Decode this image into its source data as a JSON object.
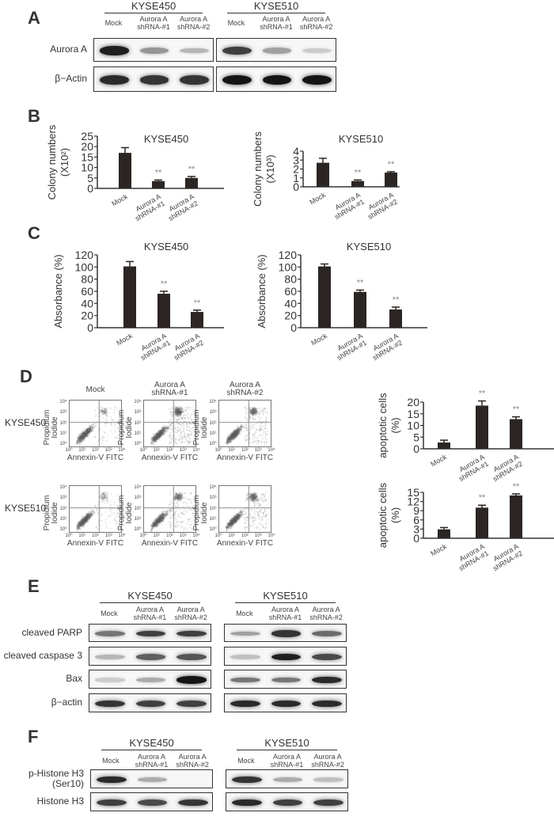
{
  "panels": {
    "A": "A",
    "B": "B",
    "C": "C",
    "D": "D",
    "E": "E",
    "F": "F"
  },
  "cell_lines": [
    "KYSE450",
    "KYSE510"
  ],
  "lanes": [
    {
      "line1": "Mock",
      "line2": ""
    },
    {
      "line1": "Aurora A",
      "line2": "shRNA-#1"
    },
    {
      "line1": "Aurora A",
      "line2": "shRNA-#2"
    }
  ],
  "panel_a": {
    "rows": [
      {
        "label": "Aurora A",
        "KYSE450": [
          0.95,
          0.4,
          0.25
        ],
        "KYSE510": [
          0.8,
          0.35,
          0.15
        ]
      },
      {
        "label": "β−Actin",
        "KYSE450": [
          0.9,
          0.85,
          0.85
        ],
        "KYSE510": [
          1,
          1,
          1
        ]
      }
    ]
  },
  "panel_e": {
    "rows": [
      {
        "label": "cleaved PARP",
        "KYSE450": [
          0.55,
          0.8,
          0.8
        ],
        "KYSE510": [
          0.35,
          0.85,
          0.6
        ]
      },
      {
        "label": "cleaved caspase 3",
        "KYSE450": [
          0.25,
          0.65,
          0.7
        ],
        "KYSE510": [
          0.2,
          0.95,
          0.75
        ]
      },
      {
        "label": "Bax",
        "KYSE450": [
          0.15,
          0.3,
          1
        ],
        "KYSE510": [
          0.55,
          0.55,
          0.9
        ]
      },
      {
        "label": "β−actin",
        "KYSE450": [
          0.85,
          0.8,
          0.8
        ],
        "KYSE510": [
          0.9,
          0.9,
          0.9
        ]
      }
    ]
  },
  "panel_f": {
    "rows": [
      {
        "label": "p-Histone H3\n(Ser10)",
        "KYSE450": [
          0.9,
          0.3,
          0
        ],
        "KYSE510": [
          0.85,
          0.3,
          0.2
        ]
      },
      {
        "label": "Histone H3",
        "KYSE450": [
          0.8,
          0.75,
          0.85
        ],
        "KYSE510": [
          0.9,
          0.8,
          0.8
        ]
      }
    ]
  },
  "panel_d": {
    "columns": [
      "Mock",
      "Aurora A\nshRNA-#1",
      "Aurora A\nshRNA-#2"
    ],
    "rows": [
      "KYSE450",
      "KYSE510"
    ],
    "xlabel": "Annexin-V FITC",
    "ylabel": "Propidium Iodide",
    "log_ticks": [
      "10⁰",
      "10¹",
      "10²",
      "10³",
      "10⁴"
    ]
  },
  "significance_mark": "**",
  "chart_data": [
    {
      "id": "b1",
      "type": "bar",
      "title": "KYSE450",
      "ylabel": "Colony numbers",
      "ylabel2": "(X10²)",
      "categories": [
        "Mock",
        "Aurora A shRNA-#1",
        "Aurora A shRNA-#2"
      ],
      "values": [
        17,
        3.5,
        5
      ],
      "errors": [
        2.5,
        0.5,
        0.7
      ],
      "significant": [
        false,
        true,
        true
      ],
      "ylim": [
        0,
        25
      ],
      "yticks": [
        0,
        5,
        10,
        15,
        20,
        25
      ]
    },
    {
      "id": "b2",
      "type": "bar",
      "title": "KYSE510",
      "ylabel": "Colony numbers",
      "ylabel2": "(X10³)",
      "categories": [
        "Mock",
        "Aurora A shRNA-#1",
        "Aurora A shRNA-#2"
      ],
      "values": [
        2.7,
        0.65,
        1.6
      ],
      "errors": [
        0.5,
        0.12,
        0.1
      ],
      "significant": [
        false,
        true,
        true
      ],
      "ylim": [
        0,
        4
      ],
      "yticks": [
        0,
        1,
        2,
        3,
        4
      ]
    },
    {
      "id": "c1",
      "type": "bar",
      "title": "KYSE450",
      "ylabel": "Absorbance (%)",
      "ylabel2": "",
      "categories": [
        "Mock",
        "Aurora A shRNA-#1",
        "Aurora A shRNA-#2"
      ],
      "values": [
        101,
        56,
        26
      ],
      "errors": [
        8,
        4,
        3
      ],
      "significant": [
        false,
        true,
        true
      ],
      "ylim": [
        0,
        120
      ],
      "yticks": [
        0,
        20,
        40,
        60,
        80,
        100,
        120
      ]
    },
    {
      "id": "c2",
      "type": "bar",
      "title": "KYSE510",
      "ylabel": "Absorbance (%)",
      "ylabel2": "",
      "categories": [
        "Mock",
        "Aurora A shRNA-#1",
        "Aurora A shRNA-#2"
      ],
      "values": [
        101,
        59,
        30
      ],
      "errors": [
        4,
        3,
        4
      ],
      "significant": [
        false,
        true,
        true
      ],
      "ylim": [
        0,
        120
      ],
      "yticks": [
        0,
        20,
        40,
        60,
        80,
        100,
        120
      ]
    },
    {
      "id": "d1",
      "type": "bar",
      "title": "",
      "ylabel": "apoptotic cells",
      "ylabel2": "(%)",
      "categories": [
        "Mock",
        "Aurora A shRNA-#1",
        "Aurora A shRNA-#2"
      ],
      "values": [
        2.7,
        18.5,
        12.7
      ],
      "errors": [
        1,
        2,
        1
      ],
      "significant": [
        false,
        true,
        true
      ],
      "ylim": [
        0,
        20
      ],
      "yticks": [
        0,
        5,
        10,
        15,
        20
      ]
    },
    {
      "id": "d2",
      "type": "bar",
      "title": "",
      "ylabel": "apoptotic cells",
      "ylabel2": "(%)",
      "categories": [
        "Mock",
        "Aurora A shRNA-#1",
        "Aurora A shRNA-#2"
      ],
      "values": [
        2.9,
        10,
        14
      ],
      "errors": [
        0.6,
        0.8,
        0.5
      ],
      "significant": [
        false,
        true,
        true
      ],
      "ylim": [
        0,
        15
      ],
      "yticks": [
        0,
        3,
        6,
        9,
        12,
        15
      ]
    }
  ]
}
